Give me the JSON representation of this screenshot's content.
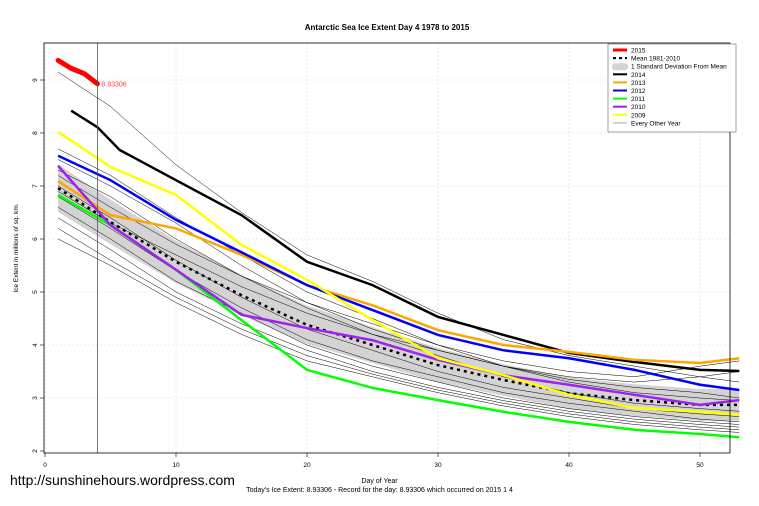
{
  "footer": {
    "website": "http://sunshinehours.wordpress.com",
    "summary": "Today's Ice Extent: 8.93306  - Record for the day: 8.93306 which occurred on 2015 1 4"
  },
  "chart_data": {
    "type": "line",
    "title": "Antarctic Sea Ice Extent Day 4 1978 to 2015",
    "xlabel": "Day of Year",
    "ylabel": "Ice Extent in millions of sq. km.",
    "xlim": [
      0,
      54
    ],
    "ylim": [
      2,
      9.7
    ],
    "xticks": [
      0,
      10,
      20,
      30,
      40,
      50
    ],
    "yticks": [
      2,
      3,
      4,
      5,
      6,
      7,
      8,
      9
    ],
    "grid": true,
    "legend_position": "top-right",
    "current_day_marker": 4,
    "current_value_label": "8.93306",
    "days": [
      1,
      5,
      10,
      15,
      20,
      25,
      30,
      35,
      40,
      45,
      50,
      53
    ],
    "series": [
      {
        "name": "Every Other Year",
        "color": "#000000",
        "kind": "other",
        "values": [
          [
            9.15,
            8.5,
            7.4,
            6.5,
            5.7,
            5.2,
            4.6,
            4.1,
            3.8,
            3.6,
            3.4,
            3.3
          ],
          [
            7.7,
            7.2,
            6.4,
            5.7,
            5.0,
            4.5,
            4.0,
            3.6,
            3.3,
            3.1,
            3.0,
            2.95
          ],
          [
            7.3,
            6.8,
            6.0,
            5.3,
            4.7,
            4.2,
            3.8,
            3.4,
            3.1,
            2.9,
            2.8,
            2.75
          ],
          [
            7.0,
            6.4,
            5.6,
            4.9,
            4.3,
            3.9,
            3.5,
            3.2,
            3.0,
            2.8,
            2.7,
            2.65
          ],
          [
            6.8,
            6.2,
            5.4,
            4.7,
            4.1,
            3.7,
            3.4,
            3.1,
            2.9,
            2.75,
            2.6,
            2.55
          ],
          [
            6.6,
            6.0,
            5.2,
            4.6,
            4.0,
            3.6,
            3.3,
            3.0,
            2.8,
            2.65,
            2.55,
            2.5
          ],
          [
            6.4,
            5.8,
            5.0,
            4.4,
            3.9,
            3.5,
            3.2,
            2.95,
            2.75,
            2.6,
            2.5,
            2.45
          ],
          [
            6.2,
            5.6,
            4.9,
            4.3,
            3.8,
            3.45,
            3.15,
            2.9,
            2.7,
            2.55,
            2.45,
            2.4
          ],
          [
            7.5,
            7.0,
            6.3,
            5.5,
            4.8,
            4.3,
            3.9,
            3.6,
            3.4,
            3.3,
            3.4,
            3.5
          ],
          [
            6.9,
            6.3,
            5.7,
            5.1,
            4.6,
            4.2,
            3.9,
            3.6,
            3.35,
            3.2,
            3.1,
            3.0
          ],
          [
            6.0,
            5.5,
            4.8,
            4.2,
            3.7,
            3.4,
            3.1,
            2.85,
            2.65,
            2.5,
            2.4,
            2.35
          ],
          [
            7.2,
            6.6,
            5.9,
            5.3,
            4.8,
            4.4,
            4.0,
            3.7,
            3.5,
            3.4,
            3.6,
            3.7
          ]
        ]
      },
      {
        "name": "Mean 1981-2010",
        "color": "#000000",
        "kind": "mean",
        "values": [
          6.96,
          6.32,
          5.57,
          4.94,
          4.38,
          4.0,
          3.62,
          3.34,
          3.09,
          2.96,
          2.87,
          2.87
        ]
      },
      {
        "name": "1 Standard Deviation From Mean",
        "color": "#d3d3d3",
        "kind": "sd",
        "values": [
          0.45,
          0.42,
          0.4,
          0.38,
          0.36,
          0.34,
          0.32,
          0.3,
          0.3,
          0.3,
          0.3,
          0.3
        ]
      },
      {
        "name": "2014",
        "color": "#000000",
        "kind": "year",
        "days": [
          2,
          4,
          5.7,
          10,
          15,
          20,
          25,
          30,
          35,
          40,
          45,
          50,
          53
        ],
        "values": [
          8.42,
          8.11,
          7.68,
          7.11,
          6.45,
          5.57,
          5.13,
          4.53,
          4.19,
          3.85,
          3.68,
          3.53,
          3.51
        ]
      },
      {
        "name": "2013",
        "color": "#ffa500",
        "kind": "year",
        "values": [
          7.09,
          6.45,
          6.2,
          5.7,
          5.13,
          4.75,
          4.28,
          4.0,
          3.87,
          3.72,
          3.66,
          3.75
        ]
      },
      {
        "name": "2012",
        "color": "#0000ff",
        "kind": "year",
        "values": [
          7.57,
          7.11,
          6.36,
          5.75,
          5.13,
          4.66,
          4.19,
          3.9,
          3.75,
          3.53,
          3.25,
          3.15
        ]
      },
      {
        "name": "2011",
        "color": "#00ff00",
        "kind": "year",
        "values": [
          6.83,
          6.26,
          5.42,
          4.47,
          3.53,
          3.19,
          2.96,
          2.74,
          2.55,
          2.4,
          2.32,
          2.26
        ]
      },
      {
        "name": "2010",
        "color": "#a020f0",
        "kind": "year",
        "values": [
          7.38,
          6.26,
          5.42,
          4.57,
          4.32,
          4.09,
          3.72,
          3.43,
          3.25,
          3.06,
          2.87,
          2.96
        ]
      },
      {
        "name": "2009",
        "color": "#ffff00",
        "kind": "year",
        "values": [
          8.02,
          7.36,
          6.83,
          5.89,
          5.23,
          4.47,
          3.75,
          3.43,
          3.06,
          2.81,
          2.74,
          2.68
        ]
      },
      {
        "name": "2015",
        "color": "#ff0000",
        "kind": "current",
        "days": [
          1,
          2,
          3,
          4
        ],
        "values": [
          9.37,
          9.22,
          9.12,
          8.93
        ]
      }
    ],
    "legend": [
      "2015",
      "Mean 1981-2010",
      "1 Standard Deviation From Mean",
      "2014",
      "2013",
      "2012",
      "2011",
      "2010",
      "2009",
      "Every Other Year"
    ]
  }
}
